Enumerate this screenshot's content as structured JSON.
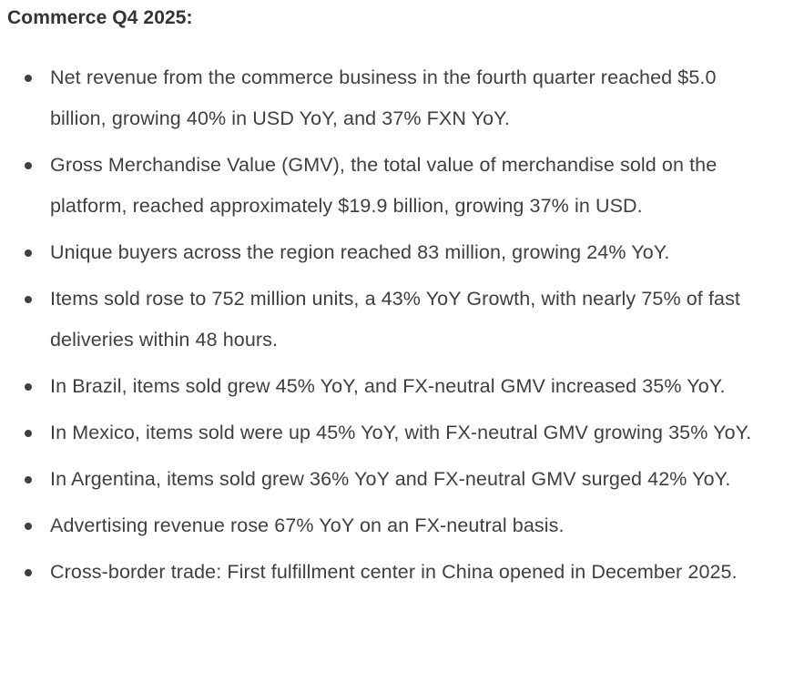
{
  "page": {
    "title": "Commerce Q4 2025:",
    "bullets": [
      "Net revenue from the commerce business in the fourth quarter reached $5.0 billion, growing 40% in USD YoY, and 37% FXN YoY.",
      "Gross Merchandise Value (GMV), the total value of merchandise sold on the platform, reached approximately $19.9 billion, growing 37% in USD.",
      "Unique buyers across the region reached 83 million, growing 24% YoY.",
      "Items sold rose to 752 million units, a 43% YoY Growth, with nearly 75% of fast deliveries within 48 hours.",
      "In Brazil, items sold grew 45% YoY, and FX-neutral GMV increased 35% YoY.",
      "In Mexico, items sold were up 45% YoY, with FX-neutral GMV growing 35% YoY.",
      "In Argentina, items sold grew 36% YoY and FX-neutral GMV surged 42% YoY.",
      "Advertising revenue rose 67% YoY on an FX-neutral basis.",
      "Cross-border trade: First fulfillment center in China opened in December 2025."
    ]
  },
  "colors": {
    "background": "#ffffff",
    "heading_text": "#333333",
    "body_text": "#3f3f3f",
    "bullet_marker": "#3f3f3f"
  }
}
